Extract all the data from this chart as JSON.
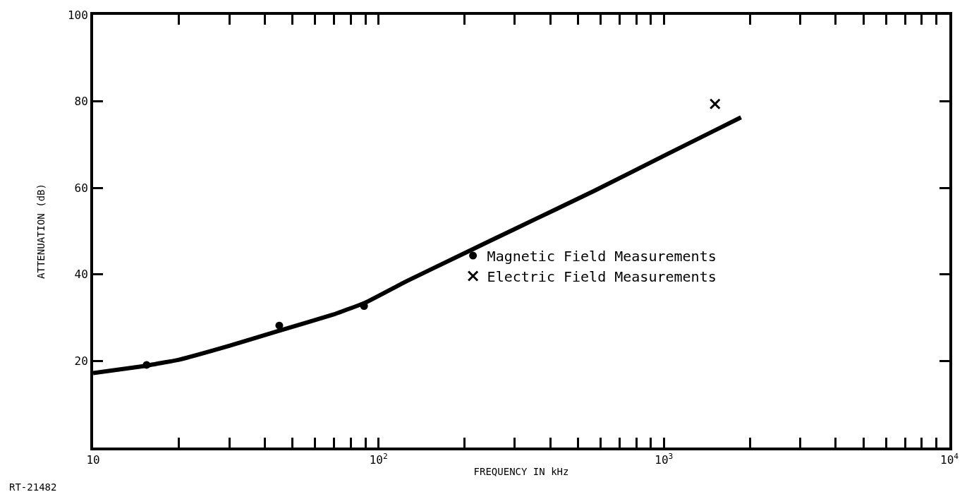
{
  "chart_data": {
    "type": "line",
    "xlabel": "FREQUENCY IN kHz",
    "ylabel": "ATTENUATION (dB)",
    "annotations": [
      "RT-21482"
    ],
    "log": "x",
    "xlim": [
      10,
      10000
    ],
    "ylim": [
      0,
      100
    ],
    "xticks": [
      {
        "value": 10,
        "label": "10"
      },
      {
        "value": 20,
        "label": null
      },
      {
        "value": 30,
        "label": null
      },
      {
        "value": 40,
        "label": null
      },
      {
        "value": 50,
        "label": null
      },
      {
        "value": 60,
        "label": null
      },
      {
        "value": 70,
        "label": null
      },
      {
        "value": 80,
        "label": null
      },
      {
        "value": 90,
        "label": null
      },
      {
        "value": 100,
        "label": "10$^{2}$"
      },
      {
        "value": 200,
        "label": null
      },
      {
        "value": 300,
        "label": null
      },
      {
        "value": 400,
        "label": null
      },
      {
        "value": 500,
        "label": null
      },
      {
        "value": 600,
        "label": null
      },
      {
        "value": 700,
        "label": null
      },
      {
        "value": 800,
        "label": null
      },
      {
        "value": 900,
        "label": null
      },
      {
        "value": 1000,
        "label": "10$^{3}$"
      },
      {
        "value": 2000,
        "label": null
      },
      {
        "value": 3000,
        "label": null
      },
      {
        "value": 4000,
        "label": null
      },
      {
        "value": 5000,
        "label": null
      },
      {
        "value": 6000,
        "label": null
      },
      {
        "value": 7000,
        "label": null
      },
      {
        "value": 8000,
        "label": null
      },
      {
        "value": 9000,
        "label": null
      },
      {
        "value": 10000,
        "label": "10$^{4}$"
      }
    ],
    "yticks": [
      20,
      40,
      60,
      80,
      100
    ],
    "legend": "center",
    "series": [
      {
        "color": "#000000",
        "marker": "none",
        "x": [
          10,
          15,
          20,
          30,
          45,
          70,
          90,
          125,
          200,
          300,
          569,
          1012,
          1862
        ],
        "values": [
          17.2,
          18.8,
          20.3,
          23.5,
          27,
          30.8,
          33.5,
          38.4,
          44.9,
          50.5,
          59.3,
          67.6,
          76.3
        ]
      },
      {
        "type": "scatter",
        "name": "Magnetic Field Measurements",
        "color": "#000000",
        "marker": "circle",
        "x": [
          15.4,
          44.9,
          89
        ],
        "values": [
          19.1,
          28.2,
          32.7
        ]
      },
      {
        "type": "scatter",
        "name": "Electric Field Measurements",
        "color": "#000000",
        "marker": "cross",
        "x": [
          1510
        ],
        "values": [
          79.4
        ]
      }
    ]
  }
}
